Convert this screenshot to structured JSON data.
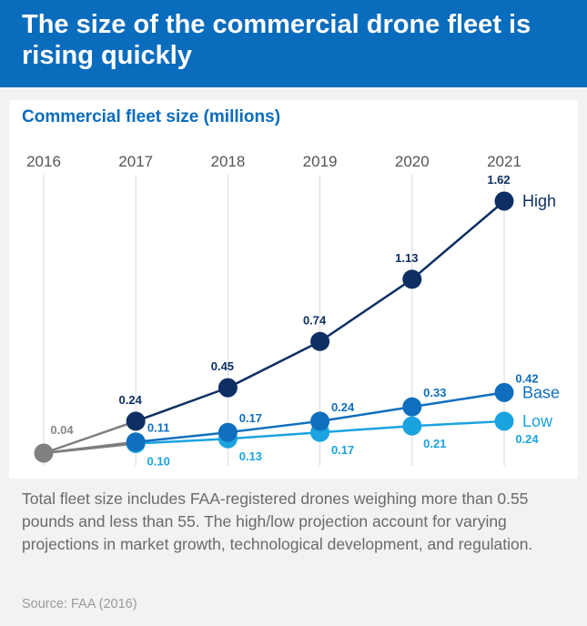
{
  "title": "The size of the commercial drone fleet is rising quickly",
  "subtitle": "Commercial fleet size (millions)",
  "note": "Total fleet size includes FAA-registered drones weighing more than 0.55 pounds and less than 55. The high/low projection account for varying projections in market growth, technological development, and regulation.",
  "source": "Source: FAA (2016)",
  "chart_data": {
    "type": "line",
    "title": "Commercial fleet size (millions)",
    "x": [
      "2016",
      "2017",
      "2018",
      "2019",
      "2020",
      "2021"
    ],
    "xlabel": "",
    "ylabel": "Commercial fleet size (millions)",
    "ylim": [
      0,
      1.7
    ],
    "grid": "vertical",
    "series": [
      {
        "name": "High",
        "color": "#0d2f63",
        "values": [
          0.04,
          0.24,
          0.45,
          0.74,
          1.13,
          1.62
        ],
        "labels": [
          "0.04",
          "0.24",
          "0.45",
          "0.74",
          "1.13",
          "1.62"
        ]
      },
      {
        "name": "Base",
        "color": "#0f6fbe",
        "values": [
          0.04,
          0.11,
          0.17,
          0.24,
          0.33,
          0.42
        ],
        "labels": [
          "",
          "0.11",
          "0.17",
          "0.24",
          "0.33",
          "0.42"
        ]
      },
      {
        "name": "Low",
        "color": "#1aa3df",
        "values": [
          0.04,
          0.1,
          0.13,
          0.17,
          0.21,
          0.24
        ],
        "labels": [
          "",
          "0.10",
          "0.13",
          "0.17",
          "0.21",
          "0.24"
        ]
      }
    ],
    "start_color": "#808080"
  }
}
